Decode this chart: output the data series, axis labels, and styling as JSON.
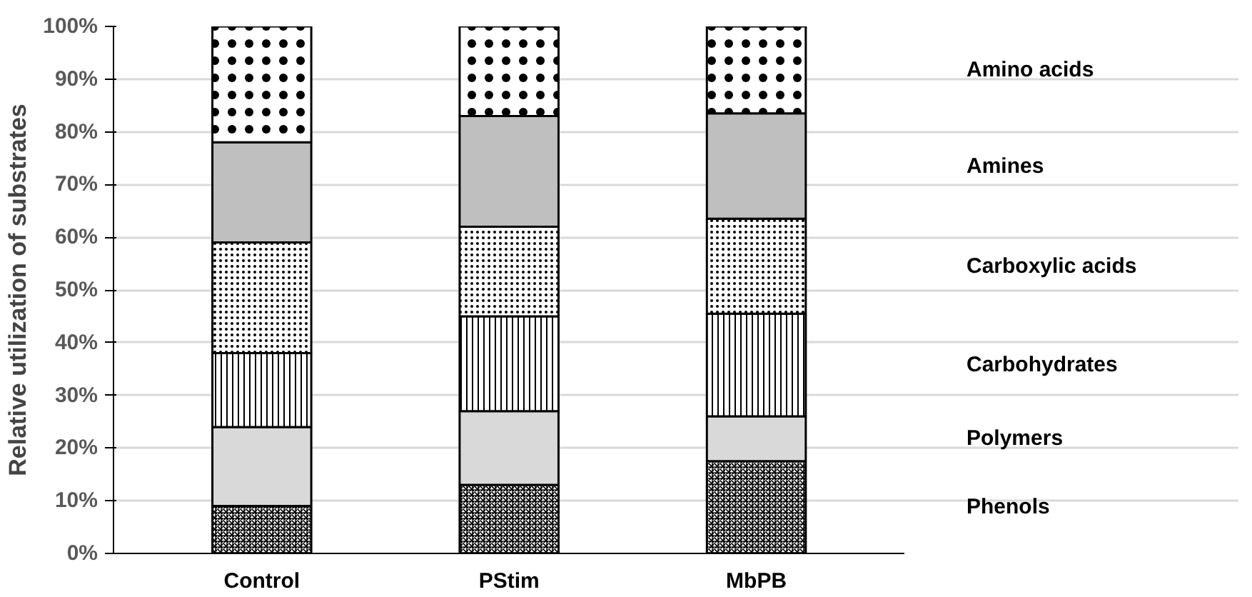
{
  "chart_data": {
    "type": "bar",
    "stacked": true,
    "ylabel": "Relative utilization of substrates",
    "categories": [
      "Control",
      "PStim",
      "MbPB"
    ],
    "series": [
      {
        "name": "Phenols",
        "color": "#ffffff",
        "values": [
          9,
          13,
          17.5
        ]
      },
      {
        "name": "Polymers",
        "color": "#d9d9d9",
        "values": [
          15,
          14,
          8.5
        ]
      },
      {
        "name": "Carbohydrates",
        "color": "#ffffff",
        "values": [
          14,
          18,
          19.5
        ]
      },
      {
        "name": "Carboxylic acids",
        "color": "#ffffff",
        "values": [
          21,
          17,
          18
        ]
      },
      {
        "name": "Amines",
        "color": "#bfbfbf",
        "values": [
          19,
          21,
          20
        ]
      },
      {
        "name": "Amino acids",
        "color": "#ffffff",
        "values": [
          22,
          17,
          16.5
        ]
      }
    ],
    "ylim": [
      0,
      100
    ],
    "yticks": [
      {
        "value": 0,
        "label": "0%"
      },
      {
        "value": 10,
        "label": "10%"
      },
      {
        "value": 20,
        "label": "20%"
      },
      {
        "value": 30,
        "label": "30%"
      },
      {
        "value": 40,
        "label": "40%"
      },
      {
        "value": 50,
        "label": "50%"
      },
      {
        "value": 60,
        "label": "60%"
      },
      {
        "value": 70,
        "label": "70%"
      },
      {
        "value": 80,
        "label": "80%"
      },
      {
        "value": 90,
        "label": "90%"
      },
      {
        "value": 100,
        "label": "100%"
      }
    ],
    "grid": "y",
    "legend": "right"
  }
}
